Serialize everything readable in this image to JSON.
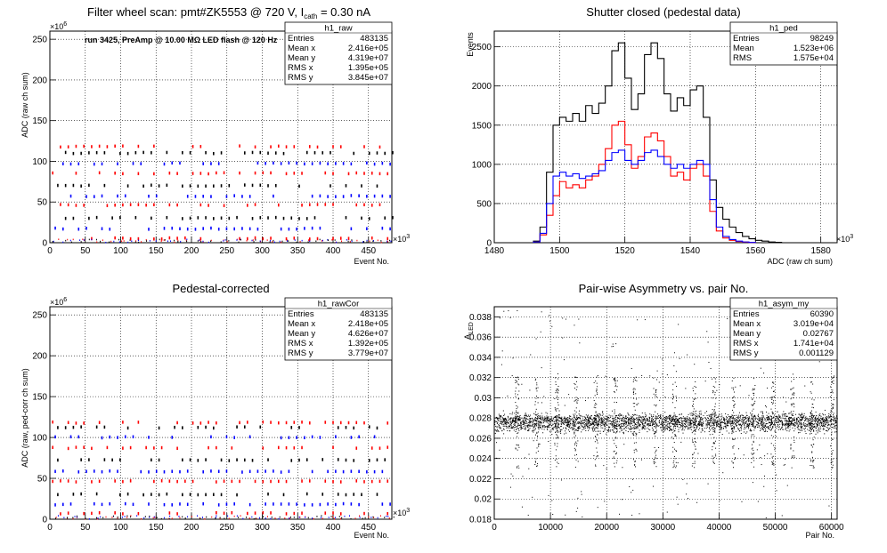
{
  "chart_data": [
    {
      "type": "scatter",
      "title": "Filter wheel scan: pmt#ZK5553 @   720 V, I",
      "title_sub": "cath",
      "title_tail": " = 0.30 nA",
      "annotation": "run 3425, PreAmp @ 10.00 MΩ LED flash @  120 Hz",
      "xlabel": "Event No.",
      "ylabel": "ADC (raw ch sum)",
      "x_multiplier": "×10",
      "x_multiplier_exp": "3",
      "y_multiplier": "×10",
      "y_multiplier_exp": "6",
      "xlim": [
        0,
        483
      ],
      "ylim": [
        0,
        260
      ],
      "x_ticks": [
        0,
        50,
        100,
        150,
        200,
        250,
        300,
        350,
        400,
        450
      ],
      "y_ticks": [
        0,
        50,
        100,
        150,
        200,
        250
      ],
      "grid": true,
      "levels": [
        5,
        17,
        30,
        46,
        57,
        70,
        85,
        97,
        110,
        118
      ],
      "series_colors": [
        "#ff0000",
        "#0000ff",
        "#000000"
      ],
      "stats": {
        "name": "h1_raw",
        "rows": [
          [
            "Entries",
            "483135"
          ],
          [
            "Mean x",
            "2.416e+05"
          ],
          [
            "Mean y",
            "4.319e+07"
          ],
          [
            "RMS x",
            "1.395e+05"
          ],
          [
            "RMS y",
            "3.845e+07"
          ]
        ]
      }
    },
    {
      "type": "line",
      "title": "Shutter closed (pedestal data)",
      "xlabel": "ADC (raw ch sum)",
      "ylabel": "Events",
      "x_multiplier": "×10",
      "x_multiplier_exp": "3",
      "xlim": [
        1480,
        1585
      ],
      "ylim": [
        0,
        2700
      ],
      "x_ticks": [
        1480,
        1500,
        1520,
        1540,
        1560,
        1580
      ],
      "y_ticks": [
        0,
        500,
        1000,
        1500,
        2000,
        2500
      ],
      "grid": true,
      "series": [
        {
          "color": "#000000",
          "x": [
            1492,
            1494,
            1496,
            1498,
            1500,
            1502,
            1504,
            1506,
            1508,
            1510,
            1512,
            1514,
            1516,
            1518,
            1520,
            1522,
            1524,
            1526,
            1528,
            1530,
            1532,
            1534,
            1536,
            1538,
            1540,
            1542,
            1544,
            1546,
            1548,
            1550,
            1552,
            1554,
            1556,
            1558,
            1560,
            1562,
            1564,
            1566
          ],
          "y": [
            20,
            200,
            900,
            1500,
            1600,
            1550,
            1650,
            1550,
            1750,
            1650,
            1780,
            2000,
            2450,
            2550,
            2100,
            1700,
            1900,
            2400,
            2550,
            2350,
            1900,
            1680,
            1850,
            1750,
            1950,
            2000,
            1600,
            800,
            450,
            300,
            200,
            130,
            80,
            50,
            30,
            20,
            10,
            5
          ]
        },
        {
          "color": "#ff0000",
          "x": [
            1492,
            1494,
            1496,
            1498,
            1500,
            1502,
            1504,
            1506,
            1508,
            1510,
            1512,
            1514,
            1516,
            1518,
            1520,
            1522,
            1524,
            1526,
            1528,
            1530,
            1532,
            1534,
            1536,
            1538,
            1540,
            1542,
            1544,
            1546,
            1548,
            1550,
            1552,
            1554,
            1556,
            1558
          ],
          "y": [
            10,
            100,
            350,
            600,
            780,
            700,
            740,
            700,
            800,
            850,
            1000,
            1200,
            1500,
            1550,
            1250,
            950,
            1100,
            1350,
            1400,
            1300,
            1100,
            850,
            900,
            800,
            950,
            1000,
            850,
            400,
            150,
            60,
            30,
            15,
            8,
            3
          ]
        },
        {
          "color": "#0000ff",
          "x": [
            1492,
            1494,
            1496,
            1498,
            1500,
            1502,
            1504,
            1506,
            1508,
            1510,
            1512,
            1514,
            1516,
            1518,
            1520,
            1522,
            1524,
            1526,
            1528,
            1530,
            1532,
            1534,
            1536,
            1538,
            1540,
            1542,
            1544,
            1546,
            1548,
            1550,
            1552,
            1554,
            1556,
            1558
          ],
          "y": [
            10,
            120,
            500,
            850,
            900,
            850,
            880,
            820,
            850,
            880,
            920,
            1050,
            1150,
            1180,
            1050,
            1000,
            1050,
            1150,
            1180,
            1100,
            1000,
            950,
            1000,
            950,
            1000,
            1050,
            1000,
            550,
            200,
            80,
            40,
            20,
            10,
            4
          ]
        }
      ],
      "stats": {
        "name": "h1_ped",
        "rows": [
          [
            "Entries",
            "98249"
          ],
          [
            "Mean",
            "1.523e+06"
          ],
          [
            "RMS",
            "1.575e+04"
          ]
        ]
      }
    },
    {
      "type": "scatter",
      "title": "Pedestal-corrected",
      "xlabel": "Event No.",
      "ylabel": "ADC (raw, ped-corr ch sum)",
      "x_multiplier": "×10",
      "x_multiplier_exp": "3",
      "y_multiplier": "×10",
      "y_multiplier_exp": "6",
      "xlim": [
        0,
        483
      ],
      "ylim": [
        0,
        260
      ],
      "x_ticks": [
        0,
        50,
        100,
        150,
        200,
        250,
        300,
        350,
        400,
        450
      ],
      "y_ticks": [
        0,
        50,
        100,
        150,
        200,
        250
      ],
      "grid": true,
      "levels": [
        7,
        18,
        30,
        46,
        58,
        72,
        87,
        100,
        112,
        118
      ],
      "series_colors": [
        "#ff0000",
        "#0000ff",
        "#000000"
      ],
      "stats": {
        "name": "h1_rawCor",
        "rows": [
          [
            "Entries",
            "483135"
          ],
          [
            "Mean x",
            "2.418e+05"
          ],
          [
            "Mean y",
            "4.626e+07"
          ],
          [
            "RMS x",
            "1.392e+05"
          ],
          [
            "RMS y",
            "3.779e+07"
          ]
        ]
      }
    },
    {
      "type": "scatter",
      "title": "Pair-wise Asymmetry vs. pair No.",
      "xlabel": "Pair No.",
      "ylabel": "A",
      "ylabel_sub": "LED",
      "xlim": [
        0,
        61000
      ],
      "ylim": [
        0.018,
        0.039
      ],
      "x_ticks": [
        0,
        10000,
        20000,
        30000,
        40000,
        50000,
        60000
      ],
      "y_ticks": [
        0.018,
        0.02,
        0.022,
        0.024,
        0.026,
        0.028,
        0.03,
        0.032,
        0.034,
        0.036,
        0.038
      ],
      "band_center": 0.0276,
      "band_halfwidth": 0.0008,
      "spike_positions": [
        4000,
        7500,
        11000,
        14500,
        18000,
        21500,
        25000,
        28500,
        32000,
        35500,
        39000,
        42500,
        46000,
        49500,
        53000,
        56500,
        60000
      ],
      "grid": true,
      "stats": {
        "name": "h1_asym_my",
        "rows": [
          [
            "Entries",
            "60390"
          ],
          [
            "Mean x",
            "3.019e+04"
          ],
          [
            "Mean y",
            "0.02767"
          ],
          [
            "RMS x",
            "1.741e+04"
          ],
          [
            "RMS y",
            "0.001129"
          ]
        ]
      }
    }
  ]
}
